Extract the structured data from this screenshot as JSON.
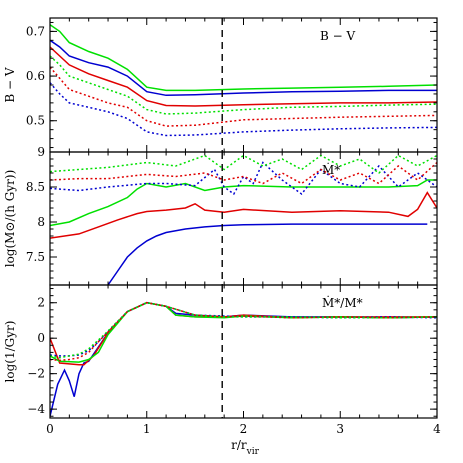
{
  "chart_data": {
    "type": "line",
    "xlabel": "r/r_vir",
    "x_ticks": [
      "0",
      "1",
      "2",
      "3",
      "4"
    ],
    "xlim": [
      0,
      4
    ],
    "vline_x": 1.78,
    "panels": [
      {
        "annotation": "B − V",
        "ylabel": "B − V",
        "ylim": [
          0.43,
          0.73
        ],
        "y_ticks": [
          "0.5",
          "0.6",
          "0.7"
        ],
        "y_tick_values": [
          0.5,
          0.6,
          0.7
        ],
        "series": [
          {
            "color": "#00e000",
            "style": "solid",
            "x": [
              0,
              0.1,
              0.2,
              0.4,
              0.6,
              0.8,
              1.0,
              1.2,
              1.5,
              2.0,
              2.5,
              3.0,
              3.5,
              4.0
            ],
            "y": [
              0.715,
              0.7,
              0.675,
              0.655,
              0.64,
              0.615,
              0.575,
              0.568,
              0.568,
              0.571,
              0.573,
              0.575,
              0.577,
              0.58
            ]
          },
          {
            "color": "#0000d0",
            "style": "solid",
            "x": [
              0,
              0.1,
              0.2,
              0.4,
              0.6,
              0.8,
              1.0,
              1.2,
              1.5,
              2.0,
              2.5,
              3.0,
              3.5,
              4.0
            ],
            "y": [
              0.68,
              0.665,
              0.645,
              0.63,
              0.62,
              0.6,
              0.565,
              0.557,
              0.558,
              0.562,
              0.565,
              0.566,
              0.568,
              0.568
            ]
          },
          {
            "color": "#e00000",
            "style": "solid",
            "x": [
              0,
              0.1,
              0.2,
              0.4,
              0.6,
              0.8,
              1.0,
              1.2,
              1.5,
              2.0,
              2.5,
              3.0,
              3.5,
              4.0
            ],
            "y": [
              0.665,
              0.645,
              0.625,
              0.605,
              0.59,
              0.575,
              0.545,
              0.534,
              0.533,
              0.536,
              0.538,
              0.54,
              0.54,
              0.542
            ]
          },
          {
            "color": "#00e000",
            "style": "dotted",
            "x": [
              0,
              0.1,
              0.2,
              0.4,
              0.6,
              0.8,
              1.0,
              1.2,
              1.5,
              2.0,
              2.5,
              3.0,
              3.5,
              4.0
            ],
            "y": [
              0.645,
              0.625,
              0.6,
              0.585,
              0.57,
              0.555,
              0.525,
              0.515,
              0.517,
              0.525,
              0.53,
              0.532,
              0.535,
              0.537
            ]
          },
          {
            "color": "#e00000",
            "style": "dotted",
            "x": [
              0,
              0.1,
              0.2,
              0.4,
              0.6,
              0.8,
              1.0,
              1.2,
              1.5,
              2.0,
              2.5,
              3.0,
              3.5,
              4.0
            ],
            "y": [
              0.62,
              0.595,
              0.57,
              0.555,
              0.54,
              0.53,
              0.5,
              0.488,
              0.49,
              0.502,
              0.505,
              0.508,
              0.51,
              0.512
            ]
          },
          {
            "color": "#0000d0",
            "style": "dotted",
            "x": [
              0,
              0.1,
              0.2,
              0.4,
              0.6,
              0.8,
              1.0,
              1.2,
              1.5,
              2.0,
              2.5,
              3.0,
              3.5,
              4.0
            ],
            "y": [
              0.585,
              0.56,
              0.54,
              0.53,
              0.52,
              0.505,
              0.475,
              0.467,
              0.468,
              0.475,
              0.479,
              0.482,
              0.484,
              0.485
            ]
          }
        ]
      },
      {
        "annotation": "Ṁ*",
        "ylabel": "log(M⊙/(h Gyr))",
        "ylim": [
          7.1,
          9.0
        ],
        "y_ticks": [
          "7.5",
          "8",
          "8.5",
          "9"
        ],
        "y_tick_values": [
          7.5,
          8,
          8.5,
          9
        ],
        "series": [
          {
            "color": "#0000d0",
            "style": "solid",
            "x": [
              0.6,
              0.7,
              0.8,
              0.9,
              1.0,
              1.1,
              1.2,
              1.4,
              1.6,
              1.8,
              2.0,
              2.5,
              3.0,
              3.5,
              3.9
            ],
            "y": [
              7.1,
              7.3,
              7.5,
              7.63,
              7.73,
              7.8,
              7.85,
              7.9,
              7.93,
              7.95,
              7.96,
              7.97,
              7.97,
              7.97,
              7.97
            ]
          },
          {
            "color": "#e00000",
            "style": "solid",
            "x": [
              0,
              0.3,
              0.5,
              0.7,
              0.9,
              1.0,
              1.2,
              1.4,
              1.5,
              1.6,
              1.8,
              2.0,
              2.5,
              3.0,
              3.5,
              3.7,
              3.8,
              3.9,
              4.0
            ],
            "y": [
              7.77,
              7.83,
              7.93,
              8.03,
              8.12,
              8.15,
              8.17,
              8.2,
              8.26,
              8.17,
              8.14,
              8.18,
              8.14,
              8.16,
              8.14,
              8.08,
              8.18,
              8.42,
              8.2
            ]
          },
          {
            "color": "#00e000",
            "style": "solid",
            "x": [
              0,
              0.2,
              0.4,
              0.6,
              0.8,
              0.9,
              1.0,
              1.2,
              1.4,
              1.6,
              1.8,
              2.0,
              2.5,
              3.0,
              3.5,
              3.8,
              3.9,
              4.0
            ],
            "y": [
              7.95,
              8.0,
              8.12,
              8.22,
              8.35,
              8.47,
              8.55,
              8.5,
              8.55,
              8.45,
              8.5,
              8.52,
              8.5,
              8.5,
              8.5,
              8.52,
              8.6,
              8.6
            ]
          },
          {
            "color": "#0000d0",
            "style": "dotted",
            "x": [
              0,
              0.3,
              0.6,
              1.0,
              1.2,
              1.5,
              1.7,
              1.8,
              1.9,
              2.0,
              2.1,
              2.2,
              2.4,
              2.6,
              2.8,
              3.0,
              3.2,
              3.4,
              3.6,
              3.8,
              4.0
            ],
            "y": [
              8.48,
              8.45,
              8.5,
              8.55,
              8.55,
              8.52,
              8.75,
              8.5,
              8.4,
              8.65,
              8.55,
              8.85,
              8.6,
              8.4,
              8.75,
              8.55,
              8.5,
              8.8,
              8.5,
              8.7,
              8.5
            ]
          },
          {
            "color": "#e00000",
            "style": "dotted",
            "x": [
              0,
              0.3,
              0.6,
              1.0,
              1.3,
              1.6,
              1.8,
              2.0,
              2.2,
              2.4,
              2.6,
              2.8,
              3.0,
              3.2,
              3.4,
              3.6,
              3.8,
              4.0
            ],
            "y": [
              8.6,
              8.62,
              8.62,
              8.68,
              8.65,
              8.7,
              8.6,
              8.65,
              8.55,
              8.7,
              8.55,
              8.75,
              8.6,
              8.7,
              8.55,
              8.8,
              8.6,
              8.85
            ]
          },
          {
            "color": "#00e000",
            "style": "dotted",
            "x": [
              0,
              0.3,
              0.6,
              1.0,
              1.3,
              1.6,
              1.8,
              2.0,
              2.2,
              2.4,
              2.6,
              2.8,
              3.0,
              3.2,
              3.4,
              3.6,
              3.8,
              4.0
            ],
            "y": [
              8.72,
              8.75,
              8.78,
              8.85,
              8.8,
              8.95,
              8.75,
              8.95,
              8.8,
              8.9,
              8.75,
              8.95,
              8.8,
              8.9,
              8.7,
              8.95,
              8.8,
              8.95
            ]
          }
        ]
      },
      {
        "annotation": "Ṁ*/M*",
        "ylabel": "log(1/Gyr)",
        "ylim": [
          -4.5,
          3.0
        ],
        "y_ticks": [
          "−4",
          "−2",
          "0",
          "2"
        ],
        "y_tick_values": [
          -4,
          -2,
          0,
          2
        ],
        "series": [
          {
            "color": "#0000d0",
            "style": "solid",
            "x": [
              0,
              0.08,
              0.15,
              0.2,
              0.25,
              0.3,
              0.35,
              0.4,
              0.5,
              0.6,
              0.8,
              1.0,
              1.2,
              1.3,
              1.5,
              1.8,
              2.0,
              2.5,
              3.0,
              3.5,
              4.0
            ],
            "y": [
              -4.4,
              -2.6,
              -1.8,
              -2.4,
              -3.3,
              -2.0,
              -1.4,
              -1.3,
              -0.5,
              0.3,
              1.5,
              2.0,
              1.8,
              1.4,
              1.3,
              1.2,
              1.3,
              1.2,
              1.2,
              1.15,
              1.2
            ]
          },
          {
            "color": "#e00000",
            "style": "solid",
            "x": [
              0,
              0.1,
              0.3,
              0.35,
              0.45,
              0.6,
              0.8,
              1.0,
              1.2,
              1.3,
              1.5,
              1.8,
              2.0,
              2.5,
              3.0,
              3.5,
              4.0
            ],
            "y": [
              0,
              -1.4,
              -1.5,
              -1.5,
              -1.0,
              0.3,
              1.5,
              2.0,
              1.8,
              1.3,
              1.2,
              1.2,
              1.3,
              1.15,
              1.2,
              1.2,
              1.2
            ]
          },
          {
            "color": "#00e000",
            "style": "solid",
            "x": [
              0,
              0.1,
              0.3,
              0.4,
              0.5,
              0.6,
              0.8,
              1.0,
              1.2,
              1.3,
              1.5,
              1.8,
              2.0,
              2.5,
              3.0,
              3.5,
              4.0
            ],
            "y": [
              -1.0,
              -1.3,
              -1.35,
              -1.2,
              -0.8,
              0.2,
              1.5,
              2.0,
              1.8,
              1.3,
              1.2,
              1.15,
              1.25,
              1.15,
              1.2,
              1.15,
              1.2
            ]
          },
          {
            "color": "#0000d0",
            "style": "dotted",
            "x": [
              0,
              0.1,
              0.2,
              0.3,
              0.4,
              0.5,
              0.6,
              0.8,
              1.0,
              1.2,
              1.5,
              1.8,
              2.0,
              2.5,
              3.0,
              3.5,
              4.0
            ],
            "y": [
              -0.95,
              -1.0,
              -1.0,
              -0.95,
              -0.7,
              -0.2,
              0.4,
              1.5,
              2.0,
              1.8,
              1.3,
              1.25,
              1.2,
              1.2,
              1.15,
              1.2,
              1.15
            ]
          },
          {
            "color": "#e00000",
            "style": "dotted",
            "x": [
              0,
              0.1,
              0.2,
              0.3,
              0.4,
              0.5,
              0.6,
              0.8,
              1.0,
              1.2,
              1.5,
              1.8,
              2.0,
              2.5,
              3.0,
              3.5,
              4.0
            ],
            "y": [
              -1.2,
              -1.25,
              -1.2,
              -1.1,
              -0.8,
              -0.2,
              0.35,
              1.5,
              2.0,
              1.8,
              1.3,
              1.2,
              1.25,
              1.15,
              1.2,
              1.15,
              1.2
            ]
          },
          {
            "color": "#00e000",
            "style": "dotted",
            "x": [
              0,
              0.1,
              0.2,
              0.3,
              0.4,
              0.5,
              0.6,
              0.8,
              1.0,
              1.2,
              1.5,
              1.8,
              2.0,
              2.5,
              3.0,
              3.5,
              4.0
            ],
            "y": [
              -1.0,
              -1.1,
              -1.0,
              -0.9,
              -0.6,
              -0.1,
              0.4,
              1.5,
              2.0,
              1.8,
              1.3,
              1.2,
              1.2,
              1.2,
              1.15,
              1.15,
              1.2
            ]
          }
        ]
      }
    ]
  }
}
